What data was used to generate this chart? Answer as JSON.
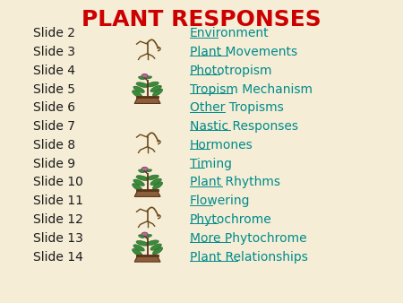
{
  "title": "PLANT RESPONSES",
  "title_color": "#CC0000",
  "title_fontsize": 18,
  "background_color": "#F5EDD6",
  "slide_label_color": "#1A1A1A",
  "link_color": "#008B8B",
  "slide_label_fontsize": 10,
  "link_fontsize": 10,
  "slides": [
    {
      "num": 2,
      "label": "Slide 2",
      "link": "Environment"
    },
    {
      "num": 3,
      "label": "Slide 3",
      "link": "Plant Movements"
    },
    {
      "num": 4,
      "label": "Slide 4",
      "link": "Phototropism"
    },
    {
      "num": 5,
      "label": "Slide 5",
      "link": "Tropism Mechanism"
    },
    {
      "num": 6,
      "label": "Slide 6",
      "link": "Other Tropisms"
    },
    {
      "num": 7,
      "label": "Slide 7",
      "link": "Nastic Responses"
    },
    {
      "num": 8,
      "label": "Slide 8",
      "link": "Hormones"
    },
    {
      "num": 9,
      "label": "Slide 9",
      "link": "Timing"
    },
    {
      "num": 10,
      "label": "Slide 10",
      "link": "Plant Rhythms"
    },
    {
      "num": 11,
      "label": "Slide 11",
      "link": "Flowering"
    },
    {
      "num": 12,
      "label": "Slide 12",
      "link": "Phytochrome"
    },
    {
      "num": 13,
      "label": "Slide 13",
      "link": "More Phytochrome"
    },
    {
      "num": 14,
      "label": "Slide 14",
      "link": "Plant Relationships"
    }
  ]
}
